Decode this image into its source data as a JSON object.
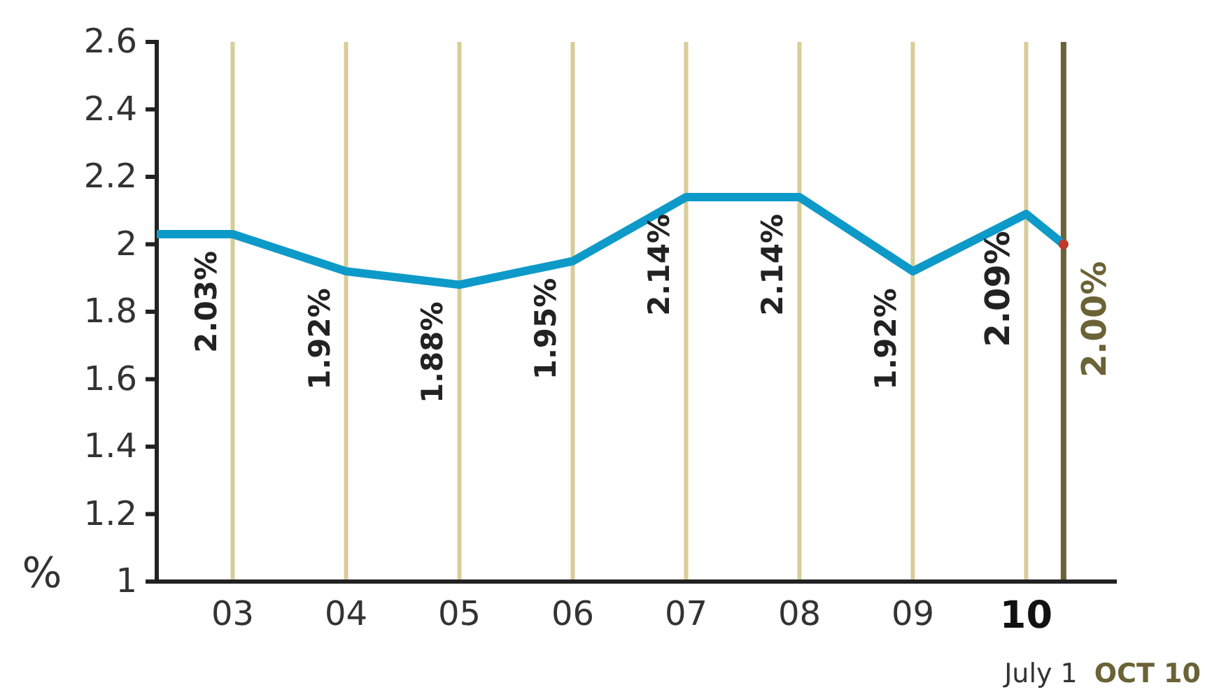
{
  "chart_data": {
    "type": "line",
    "ylabel": "%",
    "xlim": [
      2.33,
      10.8
    ],
    "xticks": [
      {
        "value": 3,
        "label": "03"
      },
      {
        "value": 4,
        "label": "04"
      },
      {
        "value": 5,
        "label": "05"
      },
      {
        "value": 6,
        "label": "06"
      },
      {
        "value": 7,
        "label": "07"
      },
      {
        "value": 8,
        "label": "08"
      },
      {
        "value": 9,
        "label": "09"
      },
      {
        "value": 10,
        "label": "10"
      }
    ],
    "ylim": [
      1,
      2.6
    ],
    "yticks": [
      1,
      1.2,
      1.4,
      1.6,
      1.8,
      2,
      2.2,
      2.4,
      2.6
    ],
    "grid": "x",
    "marker": "none",
    "line_style": "solid",
    "series": [
      {
        "color": "#0e9ac8",
        "x": [
          2.33,
          3,
          4,
          5,
          6,
          7,
          8,
          9,
          10,
          10.33
        ],
        "values": [
          2.03,
          2.03,
          1.92,
          1.88,
          1.95,
          2.14,
          2.14,
          1.92,
          2.09,
          2.0
        ],
        "value_labels": [
          null,
          "2.03%",
          "1.92%",
          "1.88%",
          "1.95%",
          "2.14%",
          "2.14%",
          "1.92%",
          "2.09%",
          null
        ]
      },
      {
        "type": "scatter",
        "color": "#c0392b",
        "marker": "circle",
        "x": [
          10.33
        ],
        "values": [
          2.0
        ],
        "value_labels": [
          "2.00%"
        ]
      }
    ],
    "ref_lines": [
      {
        "axis": "x",
        "value": 10.33,
        "label": "OCT 10",
        "color": "#6b6236"
      }
    ],
    "annotations": [
      "July 1"
    ]
  }
}
